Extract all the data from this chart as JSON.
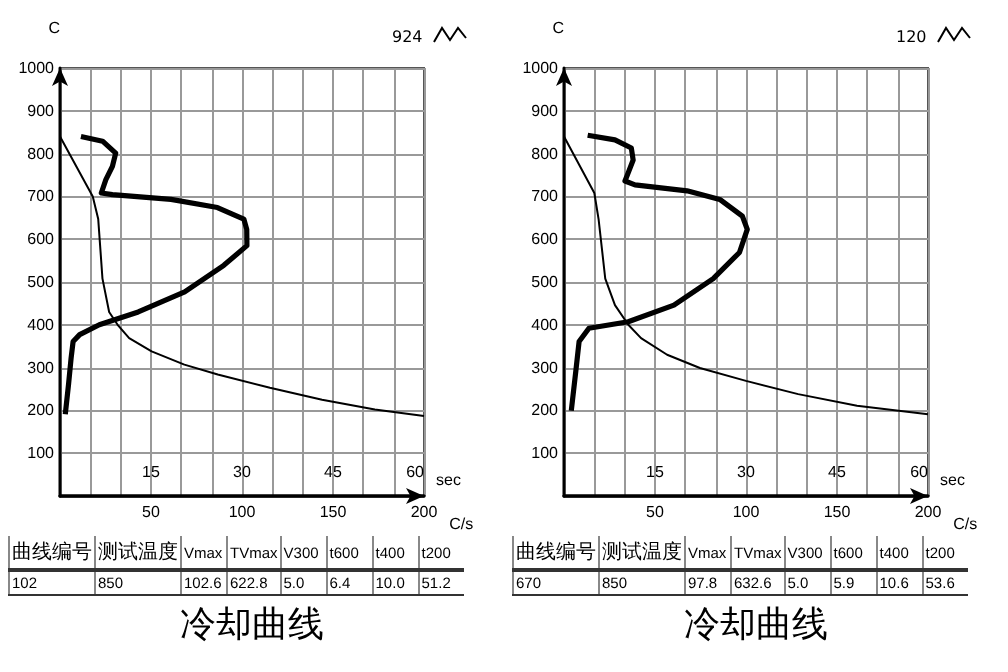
{
  "chart_data": [
    {
      "type": "line",
      "title": "冷却曲线",
      "ylabel": "C",
      "xlabel": "sec",
      "x2label": "C/s",
      "xlim": [
        0,
        60
      ],
      "xticks": [
        {
          "value": 5,
          "label": null
        },
        {
          "value": 10,
          "label": null
        },
        15,
        {
          "value": 20,
          "label": null
        },
        {
          "value": 25,
          "label": null
        },
        30,
        {
          "value": 35,
          "label": null
        },
        {
          "value": 40,
          "label": null
        },
        45,
        {
          "value": 50,
          "label": null
        },
        {
          "value": 55,
          "label": null
        },
        60
      ],
      "x2lim": [
        0,
        200
      ],
      "x2ticks": [
        50,
        100,
        150,
        200
      ],
      "ylim": [
        0,
        1000
      ],
      "yticks": [
        {
          "value": 0,
          "label": null
        },
        100,
        200,
        300,
        400,
        500,
        600,
        700,
        800,
        900,
        1000
      ],
      "grid": true,
      "marker": "none",
      "line_style": "solid",
      "annotations": [
        "924",
        "曲线编号",
        "测试温度",
        "Vmax",
        "TVmax",
        "V300",
        "t600",
        "t400",
        "t200",
        "102",
        "850",
        "102.6",
        "622.8",
        "5.0",
        "6.4",
        "10.0",
        "51.2"
      ],
      "series": [
        {
          "color": "#000000",
          "x": [
            0,
            5.4,
            6.3,
            7.0,
            8.1,
            9.5,
            11.4,
            15.1,
            20.5,
            26,
            34.6,
            43.2,
            51.9,
            60
          ],
          "values": [
            840,
            700,
            647,
            508,
            430,
            400,
            369,
            338,
            307,
            284,
            253,
            225,
            202,
            187
          ]
        },
        {
          "color": "#000000",
          "axis": "x2",
          "x": [
            11.5,
            23.4,
            30.6,
            28.8,
            25.2,
            22.7,
            28.8,
            61,
            86.5,
            101,
            102.6,
            102.7,
            90,
            68.5,
            43,
            21.6,
            10.8,
            7.2,
            6.1,
            4.7,
            2.9
          ],
          "values": [
            840,
            829,
            801,
            770,
            739,
            708,
            704,
            693,
            674,
            647,
            623,
            585,
            539,
            477,
            430,
            400,
            377,
            361,
            322,
            261,
            191
          ]
        }
      ]
    },
    {
      "type": "line",
      "title": "冷却曲线",
      "ylabel": "C",
      "xlabel": "sec",
      "x2label": "C/s",
      "xlim": [
        0,
        60
      ],
      "xticks": [
        {
          "value": 5,
          "label": null
        },
        {
          "value": 10,
          "label": null
        },
        15,
        {
          "value": 20,
          "label": null
        },
        {
          "value": 25,
          "label": null
        },
        30,
        {
          "value": 35,
          "label": null
        },
        {
          "value": 40,
          "label": null
        },
        45,
        {
          "value": 50,
          "label": null
        },
        {
          "value": 55,
          "label": null
        },
        60
      ],
      "x2lim": [
        0,
        200
      ],
      "x2ticks": [
        50,
        100,
        150,
        200
      ],
      "ylim": [
        0,
        1000
      ],
      "yticks": [
        {
          "value": 0,
          "label": null
        },
        100,
        200,
        300,
        400,
        500,
        600,
        700,
        800,
        900,
        1000
      ],
      "grid": true,
      "marker": "none",
      "line_style": "solid",
      "annotations": [
        "120",
        "曲线编号",
        "测试温度",
        "Vmax",
        "TVmax",
        "V300",
        "t600",
        "t400",
        "t200",
        "670",
        "850",
        "97.8",
        "632.6",
        "5.0",
        "5.9",
        "10.6",
        "53.6"
      ],
      "series": [
        {
          "color": "#000000",
          "x": [
            0,
            5,
            5.7,
            6.8,
            8.4,
            10.6,
            12.7,
            17,
            22.4,
            30,
            38.6,
            48.3,
            60
          ],
          "values": [
            840,
            708,
            647,
            508,
            446,
            400,
            369,
            330,
            299,
            269,
            238,
            211,
            191
          ]
        },
        {
          "color": "#000000",
          "axis": "x2",
          "x": [
            13,
            28,
            37,
            38,
            35,
            33.5,
            39,
            67.6,
            85.6,
            98,
            100.7,
            96.4,
            82,
            60.4,
            35.3,
            13.7,
            8.3,
            6.5,
            4
          ],
          "values": [
            843,
            832,
            813,
            785,
            752,
            736,
            727,
            713,
            693,
            654,
            623,
            569,
            508,
            446,
            407,
            392,
            361,
            292,
            199
          ]
        }
      ]
    }
  ]
}
